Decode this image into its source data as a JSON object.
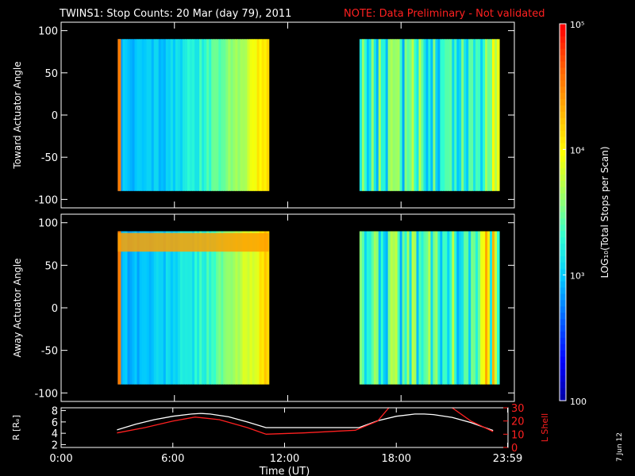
{
  "title": {
    "main": "TWINS1: Stop Counts: 20 Mar (day  79), 2011",
    "note": "NOTE: Data Preliminary - Not validated",
    "note_color": "#ff2020"
  },
  "date_stamp": "7 Jun 12",
  "chart_data": [
    {
      "type": "heatmap",
      "panel": "toward",
      "ylabel": "Toward Actuator Angle",
      "ylim": [
        -110,
        110
      ],
      "yticks": [
        "100",
        "50",
        "0",
        "-50",
        "-100"
      ],
      "ytick_values": [
        100,
        50,
        0,
        -50,
        -100
      ],
      "xlim_hours": [
        0,
        24
      ],
      "data_intervals_hours": [
        [
          3.0,
          11.0
        ],
        [
          15.8,
          23.2
        ]
      ],
      "angle_range": [
        -90,
        90
      ]
    },
    {
      "type": "heatmap",
      "panel": "away",
      "ylabel": "Away Actuator Angle",
      "ylim": [
        -110,
        110
      ],
      "yticks": [
        "100",
        "50",
        "0",
        "-50",
        "-100"
      ],
      "ytick_values": [
        100,
        50,
        0,
        -50,
        -100
      ],
      "xlim_hours": [
        0,
        24
      ],
      "data_intervals_hours": [
        [
          3.0,
          11.0
        ],
        [
          15.8,
          23.2
        ]
      ],
      "angle_range": [
        -90,
        90
      ]
    },
    {
      "type": "line",
      "panel": "orbit",
      "ylabel_left": "R [Rₑ]",
      "ylabel_right": "L Shell",
      "right_color": "#ff2020",
      "ylim_left": [
        1.5,
        8.5
      ],
      "yticks_left": [
        "8",
        "6",
        "4",
        "2"
      ],
      "ytick_values_left": [
        8,
        6,
        4,
        2
      ],
      "ylim_right": [
        0,
        30
      ],
      "yticks_right": [
        "30",
        "20",
        "10",
        "0"
      ],
      "ytick_values_right": [
        30,
        20,
        10,
        0
      ],
      "xlabel": "Time (UT)",
      "xticks": [
        "0:00",
        "6:00",
        "12:00",
        "18:00",
        "23:59"
      ],
      "xtick_values": [
        0,
        6,
        12,
        18,
        23.98
      ],
      "series": [
        {
          "axis": "left",
          "color": "#ffffff",
          "x": [
            3.0,
            4,
            5,
            6,
            7,
            7.5,
            8,
            9,
            10,
            11,
            12,
            13,
            14,
            15,
            16,
            17,
            18,
            19,
            19.5,
            20,
            21,
            22,
            23.2
          ],
          "y": [
            4.6,
            5.6,
            6.4,
            7.0,
            7.4,
            7.5,
            7.4,
            6.9,
            6.0,
            5.0,
            5.0,
            5.0,
            5.0,
            5.0,
            5.0,
            6.2,
            7.0,
            7.4,
            7.4,
            7.3,
            6.8,
            5.9,
            4.5
          ]
        },
        {
          "axis": "right",
          "color": "#ff2020",
          "segments": [
            {
              "x": [
                3.0,
                4.5,
                6,
                7.2,
                8.5,
                10,
                11
              ],
              "y": [
                11,
                15,
                20,
                23,
                21,
                15,
                10
              ]
            },
            {
              "x": [
                11,
                13,
                15.8,
                17,
                17.6
              ],
              "y": [
                10,
                11,
                13,
                20,
                30
              ]
            },
            {
              "x": [
                21.0,
                22,
                23.2
              ],
              "y": [
                30,
                20,
                12
              ]
            }
          ]
        }
      ]
    }
  ],
  "colorbar": {
    "label": "LOG₁₀(Total Stops per Scan)",
    "ticks": [
      "10⁵",
      "10⁴",
      "10³",
      "100"
    ],
    "tick_values": [
      100000,
      10000,
      1000,
      100
    ],
    "range": [
      100,
      100000
    ],
    "scale": "log",
    "colors": [
      "#00009a",
      "#0000ff",
      "#0060ff",
      "#00c8ff",
      "#30ffd0",
      "#a0ff60",
      "#ffff00",
      "#ffb000",
      "#ff6000",
      "#ff0000"
    ]
  }
}
